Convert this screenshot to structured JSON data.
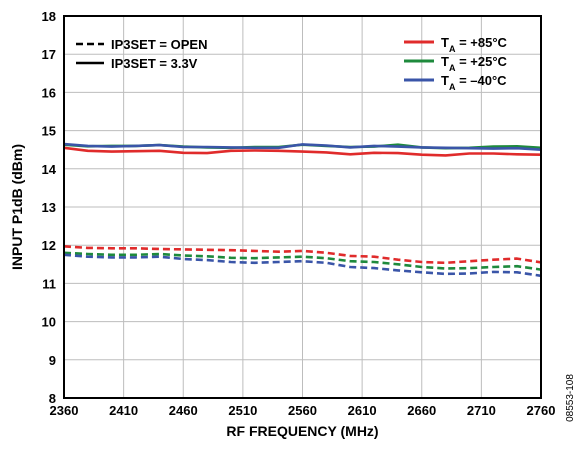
{
  "chart_data": {
    "type": "line",
    "xlabel": "RF FREQUENCY (MHz)",
    "ylabel": "INPUT P1dB (dBm)",
    "figure_id": "08553-108",
    "xlim": [
      2360,
      2760
    ],
    "ylim": [
      8,
      18
    ],
    "xticks": [
      "2360",
      "2410",
      "2460",
      "2510",
      "2560",
      "2610",
      "2660",
      "2710",
      "2760"
    ],
    "yticks": [
      "8",
      "9",
      "10",
      "11",
      "12",
      "13",
      "14",
      "15",
      "16",
      "17",
      "18"
    ],
    "grid": true,
    "legend_style": {
      "position": "top-left",
      "entries": [
        {
          "label": "IP3SET = OPEN",
          "dash": "dashed"
        },
        {
          "label": "IP3SET = 3.3V",
          "dash": "solid"
        }
      ]
    },
    "legend_temp": {
      "position": "top-right",
      "entries": [
        {
          "prefix": "T",
          "sub": "A",
          "suffix": " = +85°C",
          "color": "#e02b2b"
        },
        {
          "prefix": "T",
          "sub": "A",
          "suffix": " = +25°C",
          "color": "#1e8a3c"
        },
        {
          "prefix": "T",
          "sub": "A",
          "suffix": " = –40°C",
          "color": "#3a55a8"
        }
      ]
    },
    "x": [
      2360,
      2380,
      2400,
      2420,
      2440,
      2460,
      2480,
      2500,
      2520,
      2540,
      2560,
      2580,
      2600,
      2620,
      2640,
      2660,
      2680,
      2700,
      2720,
      2740,
      2760
    ],
    "series": [
      {
        "temp": "+85°C",
        "ip3set": "3.3V",
        "color": "#e02b2b",
        "dash": "solid",
        "values": [
          14.55,
          14.47,
          14.45,
          14.46,
          14.47,
          14.42,
          14.41,
          14.47,
          14.48,
          14.47,
          14.45,
          14.43,
          14.38,
          14.42,
          14.41,
          14.37,
          14.35,
          14.4,
          14.4,
          14.38,
          14.37
        ]
      },
      {
        "temp": "+25°C",
        "ip3set": "3.3V",
        "color": "#1e8a3c",
        "dash": "solid",
        "values": [
          14.63,
          14.59,
          14.6,
          14.6,
          14.62,
          14.58,
          14.56,
          14.55,
          14.57,
          14.57,
          14.63,
          14.6,
          14.57,
          14.58,
          14.63,
          14.56,
          14.54,
          14.55,
          14.58,
          14.59,
          14.55
        ]
      },
      {
        "temp": "–40°C",
        "ip3set": "3.3V",
        "color": "#3a55a8",
        "dash": "solid",
        "values": [
          14.65,
          14.6,
          14.58,
          14.6,
          14.62,
          14.57,
          14.57,
          14.56,
          14.55,
          14.55,
          14.64,
          14.61,
          14.56,
          14.6,
          14.58,
          14.56,
          14.55,
          14.54,
          14.53,
          14.54,
          14.5
        ]
      },
      {
        "temp": "+85°C",
        "ip3set": "OPEN",
        "color": "#e02b2b",
        "dash": "dashed",
        "values": [
          11.97,
          11.93,
          11.92,
          11.92,
          11.9,
          11.89,
          11.88,
          11.87,
          11.85,
          11.83,
          11.85,
          11.8,
          11.72,
          11.7,
          11.62,
          11.56,
          11.54,
          11.58,
          11.62,
          11.65,
          11.55
        ]
      },
      {
        "temp": "+25°C",
        "ip3set": "OPEN",
        "color": "#1e8a3c",
        "dash": "dashed",
        "values": [
          11.8,
          11.77,
          11.75,
          11.75,
          11.77,
          11.73,
          11.71,
          11.67,
          11.66,
          11.68,
          11.7,
          11.66,
          11.58,
          11.56,
          11.5,
          11.43,
          11.39,
          11.4,
          11.43,
          11.45,
          11.36
        ]
      },
      {
        "temp": "–40°C",
        "ip3set": "OPEN",
        "color": "#3a55a8",
        "dash": "dashed",
        "values": [
          11.75,
          11.7,
          11.68,
          11.68,
          11.7,
          11.64,
          11.61,
          11.56,
          11.54,
          11.56,
          11.58,
          11.54,
          11.43,
          11.4,
          11.34,
          11.29,
          11.25,
          11.26,
          11.3,
          11.29,
          11.2
        ]
      }
    ]
  }
}
